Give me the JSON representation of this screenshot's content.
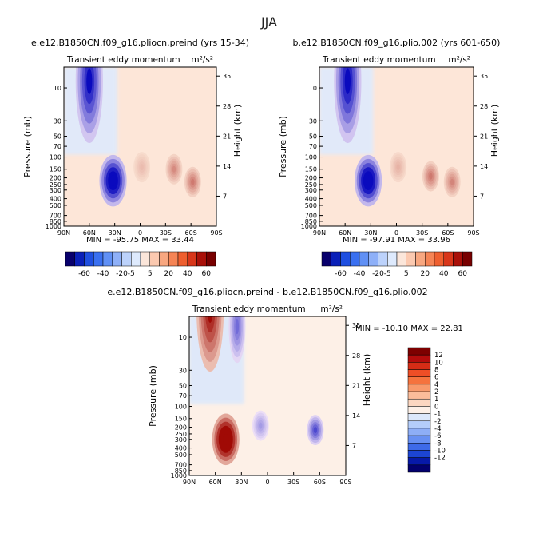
{
  "figure_title": "JJA",
  "chart_data": [
    {
      "type": "heatmap",
      "title": "e.e12.B1850CN.f09_g16.pliocn.preind (yrs 15-34)",
      "subtitle": "Transient eddy momentum",
      "units_html": "m²/s²",
      "x": [
        "90N",
        "60N",
        "30N",
        "0",
        "30S",
        "60S",
        "90S"
      ],
      "y_pressure_ticks": [
        "10",
        "30",
        "50",
        "70",
        "100",
        "150",
        "200",
        "250",
        "300",
        "400",
        "500",
        "700",
        "850",
        "1000"
      ],
      "y_height_ticks": [
        "35",
        "28",
        "21",
        "14",
        "7"
      ],
      "xlabel": "",
      "ylabel": "Pressure (mb)",
      "ylabel_right": "Height (km)",
      "stats": "MIN = -95.75   MAX = 33.44",
      "features": [
        {
          "lat": 32,
          "p": 220,
          "value": -95.75
        },
        {
          "lat": 60,
          "p": 8,
          "value": -70
        },
        {
          "lat": -40,
          "p": 150,
          "value": 28
        },
        {
          "lat": -62,
          "p": 230,
          "value": 33.44
        },
        {
          "lat": -2,
          "p": 140,
          "value": 12
        }
      ]
    },
    {
      "type": "heatmap",
      "title": "b.e12.B1850CN.f09_g16.plio.002 (yrs 601-650)",
      "subtitle": "Transient eddy momentum",
      "units_html": "m²/s²",
      "x": [
        "90N",
        "60N",
        "30N",
        "0",
        "30S",
        "60S",
        "90S"
      ],
      "y_pressure_ticks": [
        "10",
        "30",
        "50",
        "70",
        "100",
        "150",
        "200",
        "250",
        "300",
        "400",
        "500",
        "700",
        "850",
        "1000"
      ],
      "y_height_ticks": [
        "35",
        "28",
        "21",
        "14",
        "7"
      ],
      "xlabel": "",
      "ylabel": "Pressure (mb)",
      "ylabel_right": "Height (km)",
      "stats": "MIN = -97.91   MAX = 33.96",
      "features": [
        {
          "lat": 33,
          "p": 220,
          "value": -97.91
        },
        {
          "lat": 57,
          "p": 8,
          "value": -72
        },
        {
          "lat": -40,
          "p": 190,
          "value": 33.96
        },
        {
          "lat": -65,
          "p": 230,
          "value": 30
        },
        {
          "lat": -2,
          "p": 140,
          "value": 15
        }
      ]
    },
    {
      "type": "heatmap",
      "title": "e.e12.B1850CN.f09_g16.pliocn.preind - b.e12.B1850CN.f09_g16.plio.002",
      "subtitle": "Transient eddy momentum",
      "units_html": "m²/s²",
      "x": [
        "90N",
        "60N",
        "30N",
        "0",
        "30S",
        "60S",
        "90S"
      ],
      "y_pressure_ticks": [
        "10",
        "30",
        "50",
        "70",
        "100",
        "150",
        "200",
        "250",
        "300",
        "400",
        "500",
        "700",
        "850",
        "1000"
      ],
      "y_height_ticks": [
        "35",
        "28",
        "21",
        "14",
        "7"
      ],
      "xlabel": "",
      "ylabel": "Pressure (mb)",
      "ylabel_right": "Height (km)",
      "stats": "MIN = -10.10   MAX =  22.81",
      "features": [
        {
          "lat": 48,
          "p": 300,
          "value": 22.81
        },
        {
          "lat": 66,
          "p": 4,
          "value": 14
        },
        {
          "lat": -55,
          "p": 220,
          "value": -10.1
        },
        {
          "lat": 35,
          "p": 7,
          "value": -8
        },
        {
          "lat": 8,
          "p": 190,
          "value": -5
        }
      ]
    }
  ],
  "colorbar_top": {
    "labels": [
      "-60",
      "-40",
      "-20",
      "-5",
      "5",
      "20",
      "40",
      "60"
    ],
    "colors": [
      "#08006c",
      "#0a20b8",
      "#1f4fe0",
      "#3a70f0",
      "#6090f5",
      "#8eb0f8",
      "#bcd2fb",
      "#deeafd",
      "#fbe6da",
      "#fbc9b0",
      "#f8a780",
      "#f58455",
      "#ee5f2f",
      "#d8361a",
      "#a91009",
      "#780000"
    ]
  },
  "colorbar_diff": {
    "labels": [
      "12",
      "10",
      "8",
      "6",
      "4",
      "2",
      "1",
      "0",
      "-1",
      "-2",
      "-4",
      "-6",
      "-8",
      "-10",
      "-12"
    ],
    "colors": [
      "#7d0000",
      "#b40c0c",
      "#d62c16",
      "#ee4e26",
      "#f5733e",
      "#f89a6c",
      "#fbbc9a",
      "#fcd7c1",
      "#fdf0e7",
      "#dce8fb",
      "#b4cdfa",
      "#8eaef6",
      "#6890f2",
      "#3e6ae8",
      "#1c45d4",
      "#0719a8",
      "#03006e"
    ]
  }
}
